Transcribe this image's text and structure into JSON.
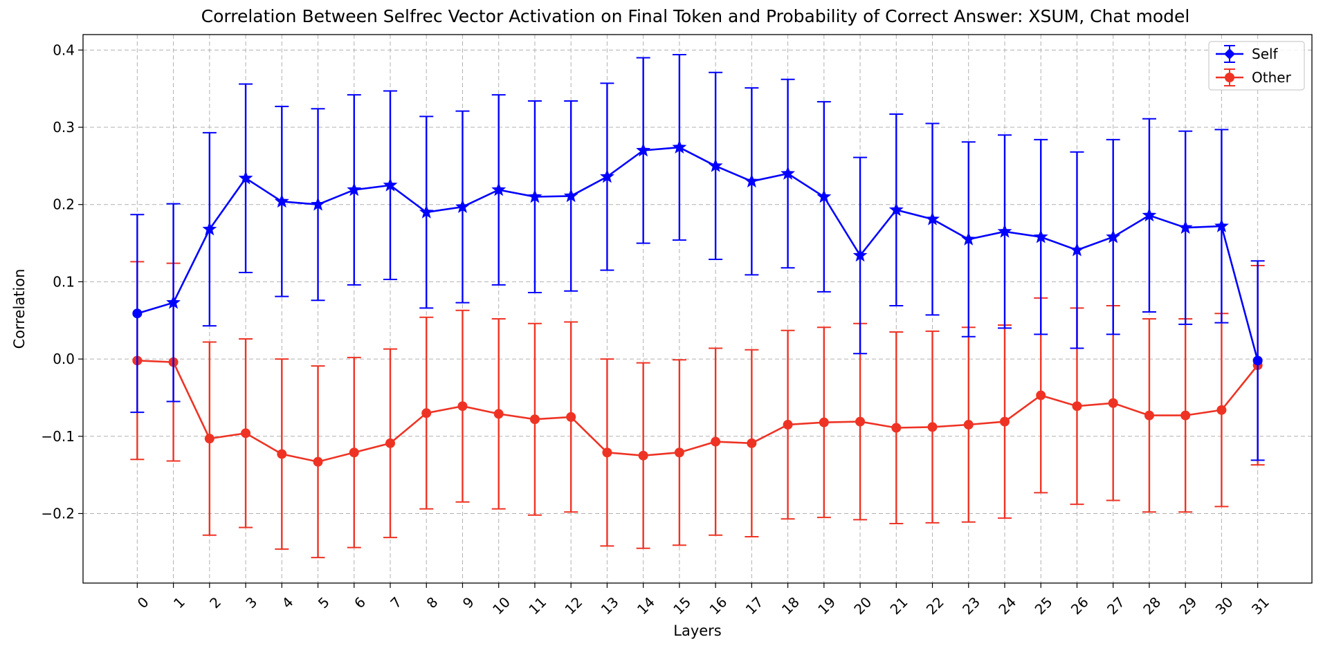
{
  "chart_data": {
    "type": "line",
    "title": "Correlation Between Selfrec Vector Activation on Final Token and Probability of Correct Answer: XSUM, Chat model",
    "xlabel": "Layers",
    "ylabel": "Correlation",
    "x": [
      0,
      1,
      2,
      3,
      4,
      5,
      6,
      7,
      8,
      9,
      10,
      11,
      12,
      13,
      14,
      15,
      16,
      17,
      18,
      19,
      20,
      21,
      22,
      23,
      24,
      25,
      26,
      27,
      28,
      29,
      30,
      31
    ],
    "x_tick_labels": [
      "0",
      "1",
      "2",
      "3",
      "4",
      "5",
      "6",
      "7",
      "8",
      "9",
      "10",
      "11",
      "12",
      "13",
      "14",
      "15",
      "16",
      "17",
      "18",
      "19",
      "20",
      "21",
      "22",
      "23",
      "24",
      "25",
      "26",
      "27",
      "28",
      "29",
      "30",
      "31"
    ],
    "y_ticks": [
      -0.2,
      -0.1,
      0.0,
      0.1,
      0.2,
      0.3,
      0.4
    ],
    "y_tick_labels": [
      "−0.2",
      "−0.1",
      "0.0",
      "0.1",
      "0.2",
      "0.3",
      "0.4"
    ],
    "ylim": [
      -0.29,
      0.42
    ],
    "xlim": [
      -1.5,
      32.5
    ],
    "grid": true,
    "legend_position": "top-right",
    "series": [
      {
        "name": "Self",
        "color": "#0000ff",
        "marker_first": "circle",
        "marker": "star",
        "values": [
          0.059,
          0.073,
          0.168,
          0.234,
          0.204,
          0.2,
          0.219,
          0.225,
          0.19,
          0.197,
          0.219,
          0.21,
          0.211,
          0.236,
          0.27,
          0.274,
          0.25,
          0.23,
          0.24,
          0.21,
          0.134,
          0.193,
          0.181,
          0.155,
          0.165,
          0.158,
          0.141,
          0.158,
          0.186,
          0.17,
          0.172,
          -0.002
        ],
        "err": [
          0.128,
          0.128,
          0.125,
          0.122,
          0.123,
          0.124,
          0.123,
          0.122,
          0.124,
          0.124,
          0.123,
          0.124,
          0.123,
          0.121,
          0.12,
          0.12,
          0.121,
          0.121,
          0.122,
          0.123,
          0.127,
          0.124,
          0.124,
          0.126,
          0.125,
          0.126,
          0.127,
          0.126,
          0.125,
          0.125,
          0.125,
          0.129
        ]
      },
      {
        "name": "Other",
        "color": "#ee3324",
        "marker": "circle",
        "values": [
          -0.002,
          -0.004,
          -0.103,
          -0.096,
          -0.123,
          -0.133,
          -0.121,
          -0.109,
          -0.07,
          -0.061,
          -0.071,
          -0.078,
          -0.075,
          -0.121,
          -0.125,
          -0.121,
          -0.107,
          -0.109,
          -0.085,
          -0.082,
          -0.081,
          -0.089,
          -0.088,
          -0.085,
          -0.081,
          -0.047,
          -0.061,
          -0.057,
          -0.073,
          -0.073,
          -0.066,
          -0.008
        ]
      }
    ]
  }
}
